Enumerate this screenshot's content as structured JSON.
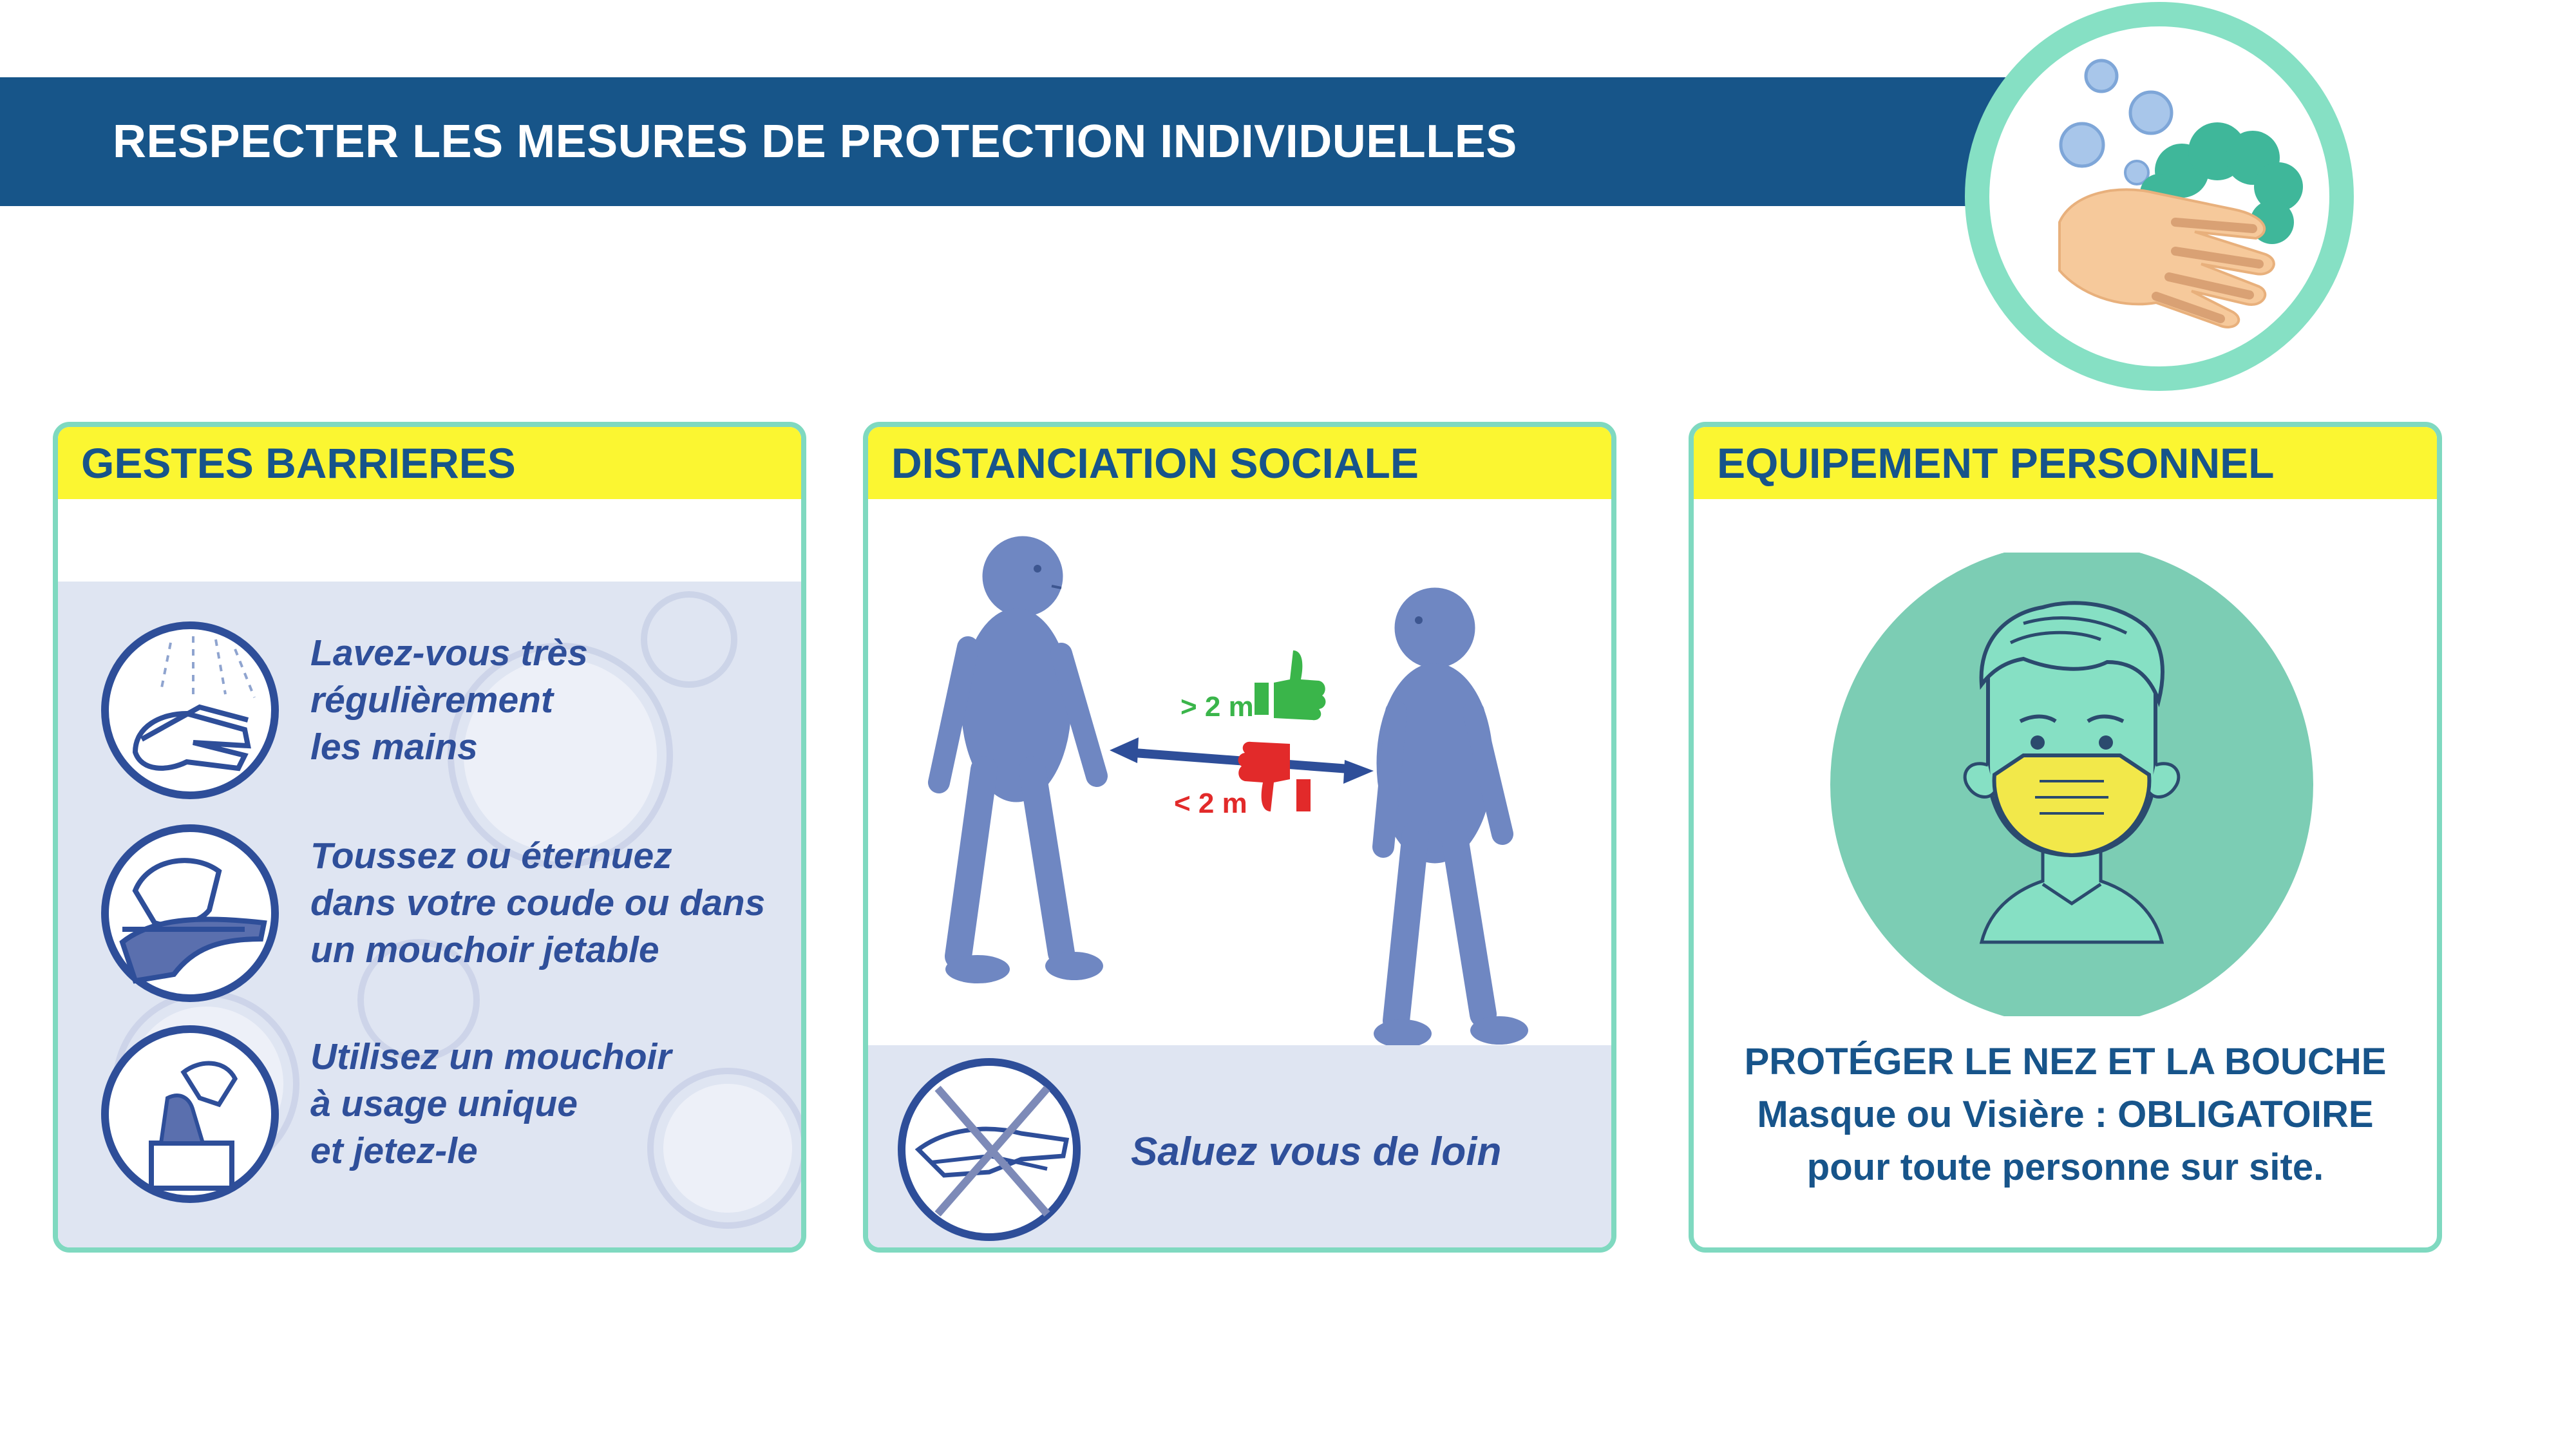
{
  "header": {
    "title": "RESPECTER LES MESURES DE PROTECTION INDIVIDUELLES",
    "logo_icon": "handwashing-icon"
  },
  "colors": {
    "banner": "#175589",
    "card_border": "#7fd9c0",
    "card_header": "#fbf631",
    "heading_text": "#17548a",
    "instruction_text": "#2f4f9a",
    "ok_green": "#3ab54a",
    "not_ok_red": "#e22a2a"
  },
  "cards": {
    "gestes": {
      "title": "GESTES BARRIERES",
      "items": [
        {
          "icon": "hand-washing-icon",
          "lines": [
            "Lavez-vous très",
            "régulièrement",
            "les mains"
          ]
        },
        {
          "icon": "sneeze-elbow-icon",
          "lines": [
            "Toussez ou éternuez",
            "dans votre coude ou dans",
            "un mouchoir jetable"
          ]
        },
        {
          "icon": "tissue-box-icon",
          "lines": [
            "Utilisez un mouchoir",
            "à usage unique",
            "et jetez-le"
          ]
        }
      ]
    },
    "distanciation": {
      "title": "DISTANCIATION SOCIALE",
      "ok_label": "> 2 m",
      "not_ok_label": "< 2 m",
      "greeting_text": "Saluez vous de loin"
    },
    "equipement": {
      "title": "EQUIPEMENT PERSONNEL",
      "lines": [
        "PROTÉGER LE NEZ ET LA BOUCHE",
        "Masque ou Visière : OBLIGATOIRE",
        "pour toute personne sur site."
      ]
    }
  }
}
